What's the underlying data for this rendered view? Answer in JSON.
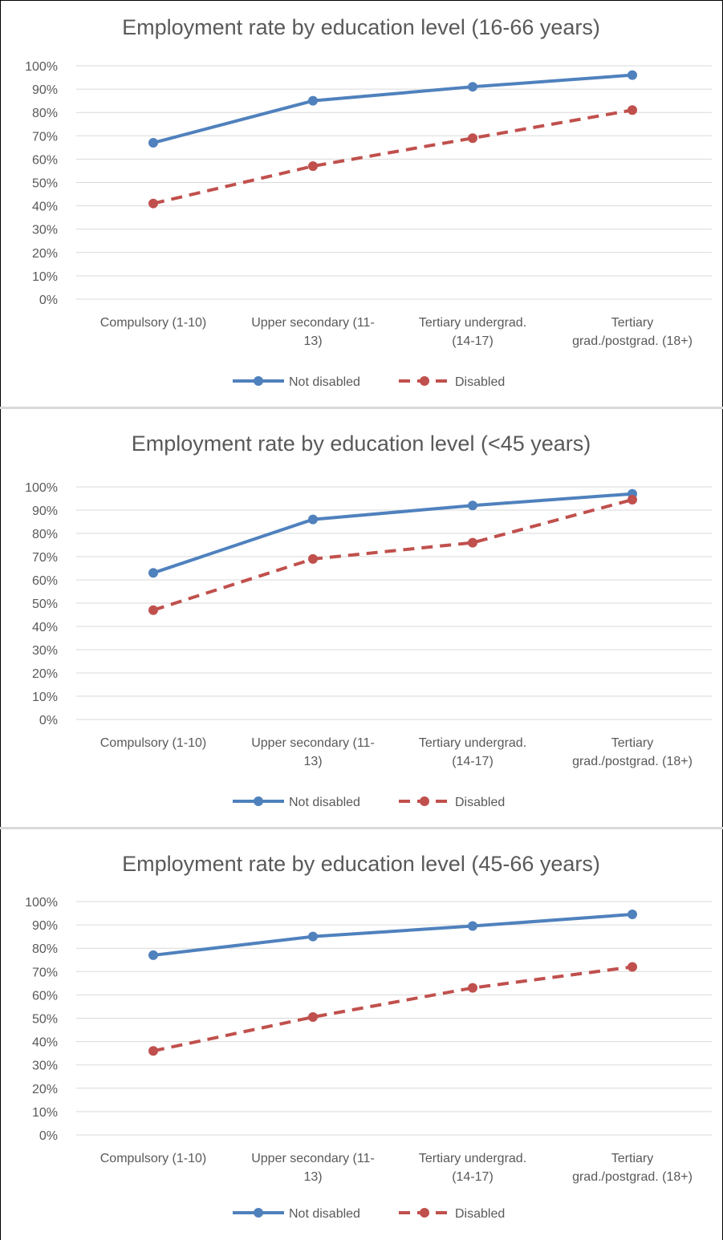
{
  "colors": {
    "not_disabled": "#4f81bd",
    "disabled": "#c0504d",
    "grid": "#d9d9d9",
    "text": "#595959"
  },
  "chart_data": [
    {
      "type": "line",
      "title": "Employment rate by education level (16-66 years)",
      "xlabel": "",
      "ylabel": "",
      "categories": [
        [
          "Compulsory (1-10)"
        ],
        [
          "Upper secondary (11-",
          "13)"
        ],
        [
          "Tertiary undergrad.",
          "(14-17)"
        ],
        [
          "Tertiary",
          "grad./postgrad. (18+)"
        ]
      ],
      "yticks": [
        "0%",
        "10%",
        "20%",
        "30%",
        "40%",
        "50%",
        "60%",
        "70%",
        "80%",
        "90%",
        "100%"
      ],
      "ylim": [
        0,
        100
      ],
      "grid": true,
      "legend_position": "bottom",
      "series": [
        {
          "name": "Not disabled",
          "style": "solid",
          "values": [
            67,
            85,
            91,
            96
          ]
        },
        {
          "name": "Disabled",
          "style": "dashed",
          "values": [
            41,
            57,
            69,
            81
          ]
        }
      ]
    },
    {
      "type": "line",
      "title": "Employment rate by education level (<45 years)",
      "xlabel": "",
      "ylabel": "",
      "categories": [
        [
          "Compulsory (1-10)"
        ],
        [
          "Upper secondary (11-",
          "13)"
        ],
        [
          "Tertiary undergrad.",
          "(14-17)"
        ],
        [
          "Tertiary",
          "grad./postgrad. (18+)"
        ]
      ],
      "yticks": [
        "0%",
        "10%",
        "20%",
        "30%",
        "40%",
        "50%",
        "60%",
        "70%",
        "80%",
        "90%",
        "100%"
      ],
      "ylim": [
        0,
        100
      ],
      "grid": true,
      "legend_position": "bottom",
      "series": [
        {
          "name": "Not disabled",
          "style": "solid",
          "values": [
            63,
            86,
            92,
            97
          ]
        },
        {
          "name": "Disabled",
          "style": "dashed",
          "values": [
            47,
            69,
            76,
            94.5
          ]
        }
      ]
    },
    {
      "type": "line",
      "title": "Employment rate by education level (45-66 years)",
      "xlabel": "",
      "ylabel": "",
      "categories": [
        [
          "Compulsory (1-10)"
        ],
        [
          "Upper secondary (11-",
          "13)"
        ],
        [
          "Tertiary undergrad.",
          "(14-17)"
        ],
        [
          "Tertiary",
          "grad./postgrad. (18+)"
        ]
      ],
      "yticks": [
        "0%",
        "10%",
        "20%",
        "30%",
        "40%",
        "50%",
        "60%",
        "70%",
        "80%",
        "90%",
        "100%"
      ],
      "ylim": [
        0,
        100
      ],
      "grid": true,
      "legend_position": "bottom",
      "series": [
        {
          "name": "Not disabled",
          "style": "solid",
          "values": [
            77,
            85,
            89.5,
            94.5
          ]
        },
        {
          "name": "Disabled",
          "style": "dashed",
          "values": [
            36,
            50.5,
            63,
            72
          ]
        }
      ]
    }
  ]
}
